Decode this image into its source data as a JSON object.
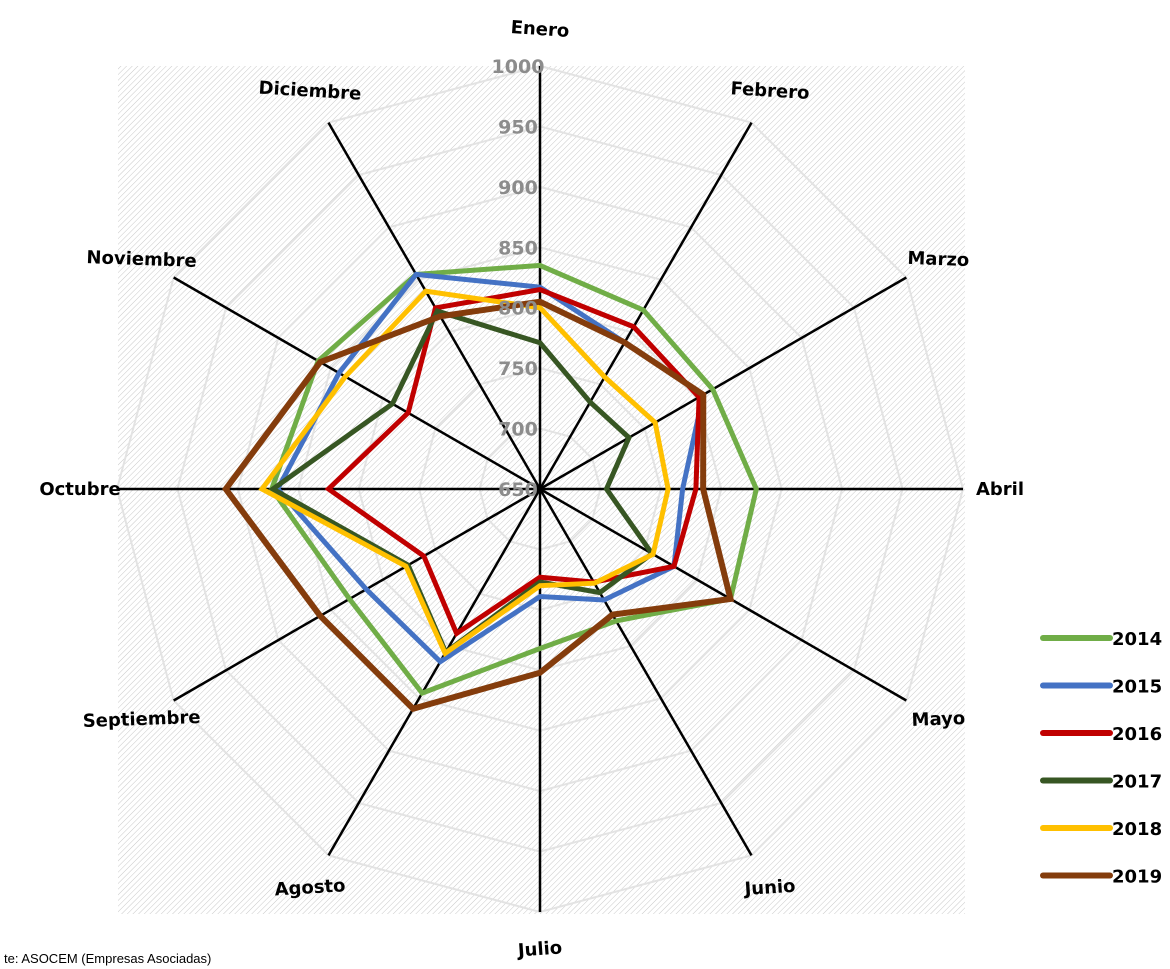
{
  "chart_data": {
    "type": "radar",
    "categories": [
      "Enero",
      "Febrero",
      "Marzo",
      "Abril",
      "Mayo",
      "Junio",
      "Julio",
      "Agosto",
      "Septiembre",
      "Octubre",
      "Noviembre",
      "Diciembre"
    ],
    "ticks": [
      "650",
      "700",
      "750",
      "800",
      "850",
      "900",
      "950",
      "1000"
    ],
    "rlim": [
      650,
      1000
    ],
    "legend_position": "right-bottom",
    "grid": true,
    "series": [
      {
        "name": "2014",
        "color": "#70ad47",
        "values": [
          835,
          821,
          815,
          829,
          832,
          776,
          782,
          845,
          832,
          872,
          862,
          855
        ]
      },
      {
        "name": "2015",
        "color": "#4472c4",
        "values": [
          817,
          790,
          806,
          768,
          778,
          756,
          739,
          815,
          816,
          867,
          842,
          855
        ]
      },
      {
        "name": "2016",
        "color": "#c00000",
        "values": [
          815,
          805,
          802,
          779,
          778,
          739,
          723,
          788,
          761,
          825,
          776,
          823
        ]
      },
      {
        "name": "2017",
        "color": "#375623",
        "values": [
          771,
          733,
          735,
          705,
          757,
          749,
          727,
          806,
          776,
          871,
          791,
          820
        ]
      },
      {
        "name": "2018",
        "color": "#ffc000",
        "values": [
          800,
          757,
          760,
          756,
          758,
          740,
          730,
          807,
          778,
          880,
          836,
          839
        ]
      },
      {
        "name": "2019",
        "color": "#843c0c",
        "values": [
          805,
          790,
          806,
          785,
          832,
          770,
          802,
          860,
          860,
          910,
          860,
          815
        ]
      }
    ]
  },
  "source_text": "te: ASOCEM (Empresas Asociadas)"
}
